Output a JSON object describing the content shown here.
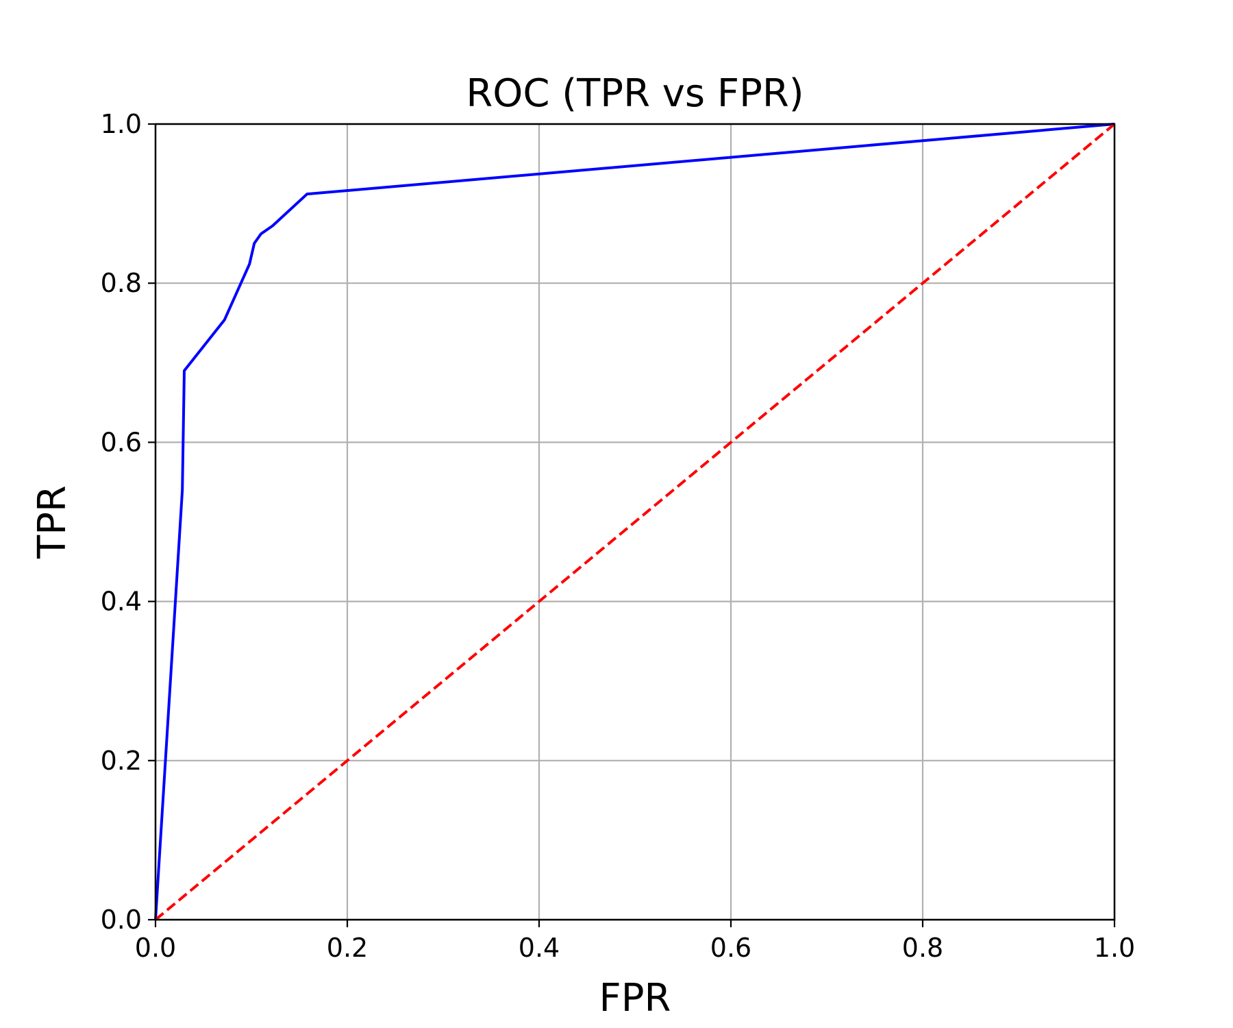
{
  "chart_data": {
    "type": "line",
    "title": "ROC (TPR vs FPR)",
    "xlabel": "FPR",
    "ylabel": "TPR",
    "xlim": [
      0.0,
      1.0
    ],
    "ylim": [
      0.0,
      1.0
    ],
    "xticks": [
      "0.0",
      "0.2",
      "0.4",
      "0.6",
      "0.8",
      "1.0"
    ],
    "yticks": [
      "0.0",
      "0.2",
      "0.4",
      "0.6",
      "0.8",
      "1.0"
    ],
    "grid": true,
    "legend": "none",
    "series": [
      {
        "color": "#0000ff",
        "style": "solid",
        "x": [
          0.0,
          0.028,
          0.03,
          0.072,
          0.098,
          0.103,
          0.11,
          0.122,
          0.158,
          1.0
        ],
        "y": [
          0.0,
          0.54,
          0.69,
          0.754,
          0.824,
          0.85,
          0.862,
          0.872,
          0.912,
          1.0
        ]
      },
      {
        "color": "#ff0000",
        "style": "dashed",
        "x": [
          0.0,
          1.0
        ],
        "y": [
          0.0,
          1.0
        ]
      }
    ]
  }
}
